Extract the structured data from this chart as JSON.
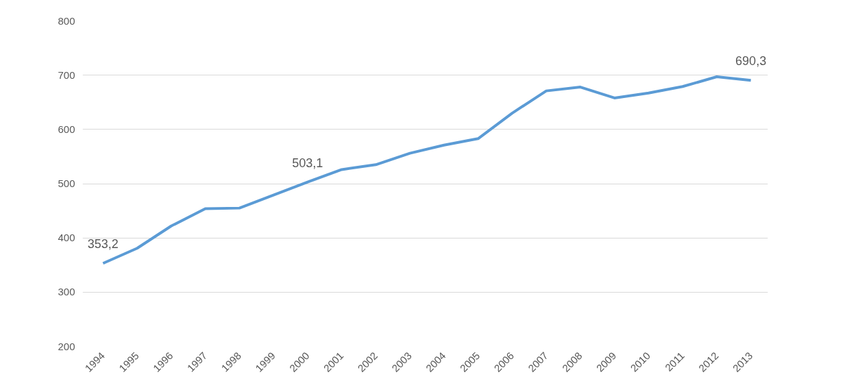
{
  "chart_data": {
    "type": "line",
    "categories": [
      "1994",
      "1995",
      "1996",
      "1997",
      "1998",
      "1999",
      "2000",
      "2001",
      "2002",
      "2003",
      "2004",
      "2005",
      "2006",
      "2007",
      "2008",
      "2009",
      "2010",
      "2011",
      "2012",
      "2013"
    ],
    "series": [
      {
        "color": "#5b9bd5",
        "values": [
          353.2,
          381,
          422,
          454,
          455,
          479,
          503.1,
          526,
          535,
          556,
          571,
          583,
          630,
          671,
          678,
          658,
          667,
          679,
          697,
          690.3
        ],
        "value_labels": [
          "353,2",
          null,
          null,
          null,
          null,
          null,
          "503,1",
          null,
          null,
          null,
          null,
          null,
          null,
          null,
          null,
          null,
          null,
          null,
          null,
          "690,3"
        ]
      }
    ],
    "ylim": [
      200,
      800
    ],
    "yticks": [
      200,
      300,
      400,
      500,
      600,
      700,
      800
    ],
    "grid": "y",
    "marker": "none",
    "line_style": "solid"
  }
}
